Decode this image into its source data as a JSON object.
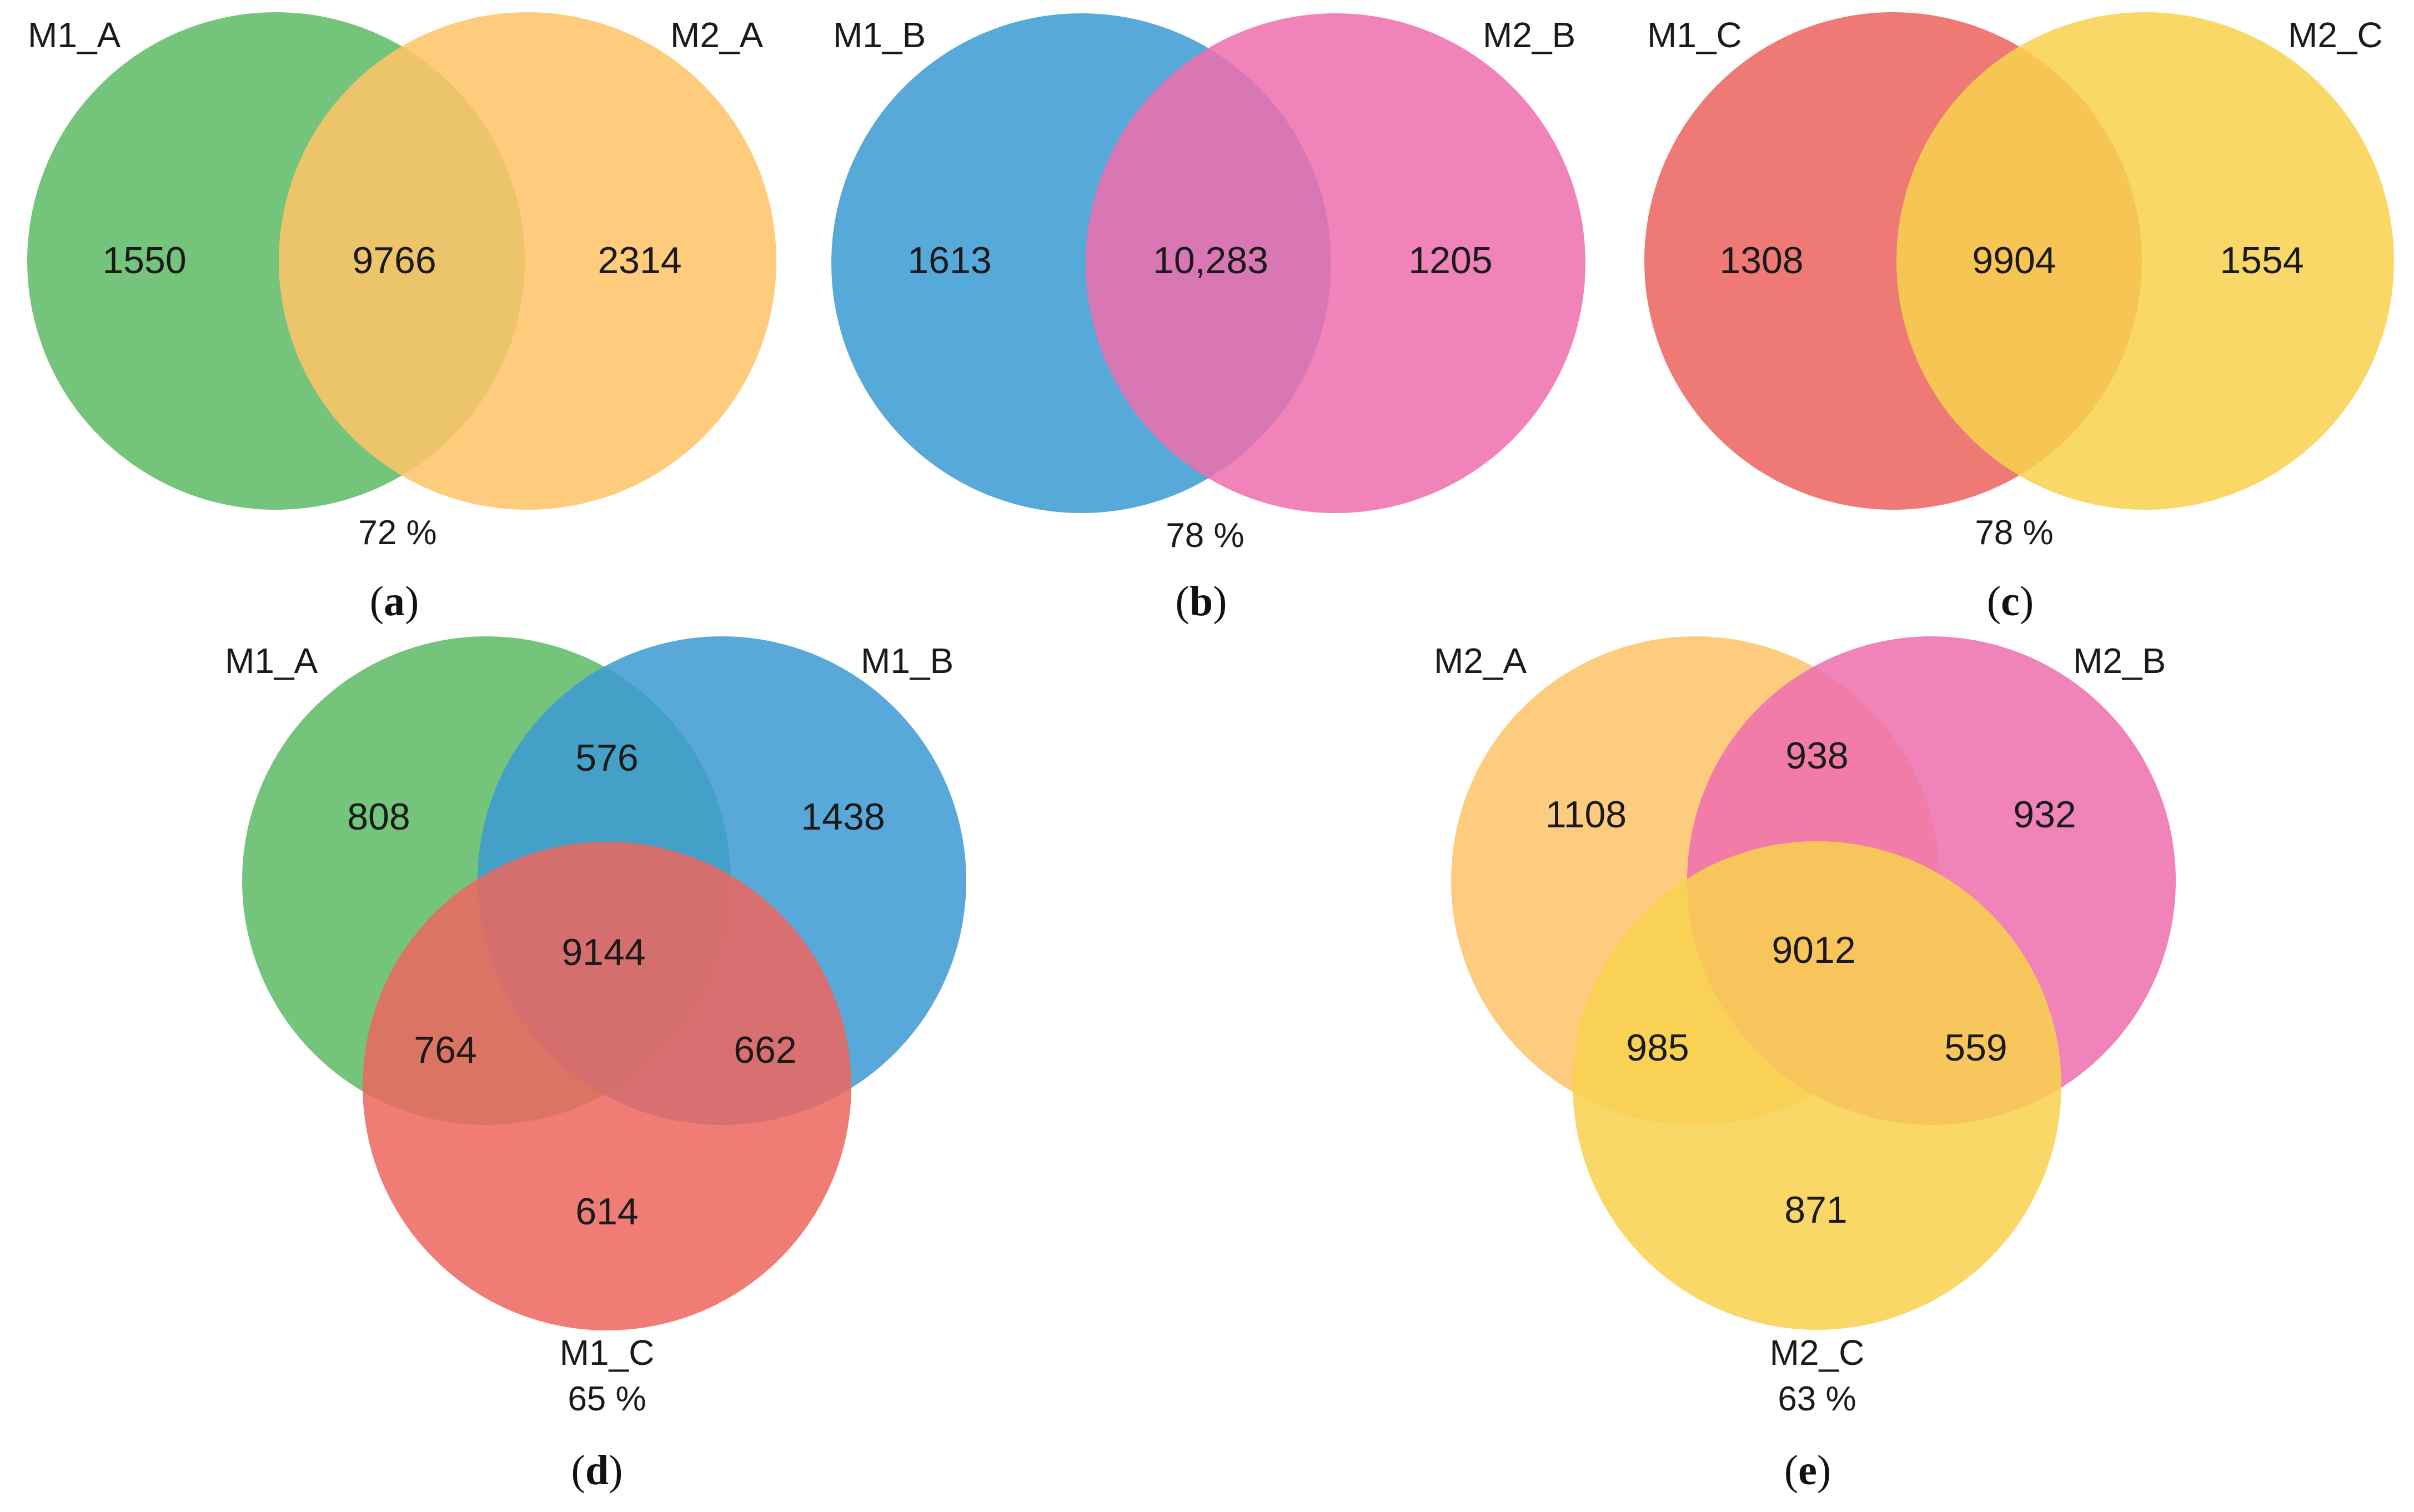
{
  "colors": {
    "green": "#74c47c",
    "orange": "#fecc7e",
    "blue": "#57a9d9",
    "pink": "#f07fb8",
    "red": "#ef7974",
    "yellow": "#f9d862"
  },
  "panels": {
    "a": {
      "tag": "a",
      "left_label": "M1_A",
      "right_label": "M2_A",
      "only_left": "1550",
      "overlap": "9766",
      "only_right": "2314",
      "percent": "72 %"
    },
    "b": {
      "tag": "b",
      "left_label": "M1_B",
      "right_label": "M2_B",
      "only_left": "1613",
      "overlap": "10,283",
      "only_right": "1205",
      "percent": "78 %"
    },
    "c": {
      "tag": "c",
      "left_label": "M1_C",
      "right_label": "M2_C",
      "only_left": "1308",
      "overlap": "9904",
      "only_right": "1554",
      "percent": "78 %"
    },
    "d": {
      "tag": "d",
      "left_label": "M1_A",
      "right_label": "M1_B",
      "bottom_label": "M1_C",
      "only_left": "808",
      "left_right": "576",
      "only_right": "1438",
      "all_three": "9144",
      "left_bottom": "764",
      "right_bottom": "662",
      "only_bottom": "614",
      "percent": "65 %"
    },
    "e": {
      "tag": "e",
      "left_label": "M2_A",
      "right_label": "M2_B",
      "bottom_label": "M2_C",
      "only_left": "1108",
      "left_right": "938",
      "only_right": "932",
      "all_three": "9012",
      "left_bottom": "985",
      "right_bottom": "559",
      "only_bottom": "871",
      "percent": "63 %"
    }
  }
}
